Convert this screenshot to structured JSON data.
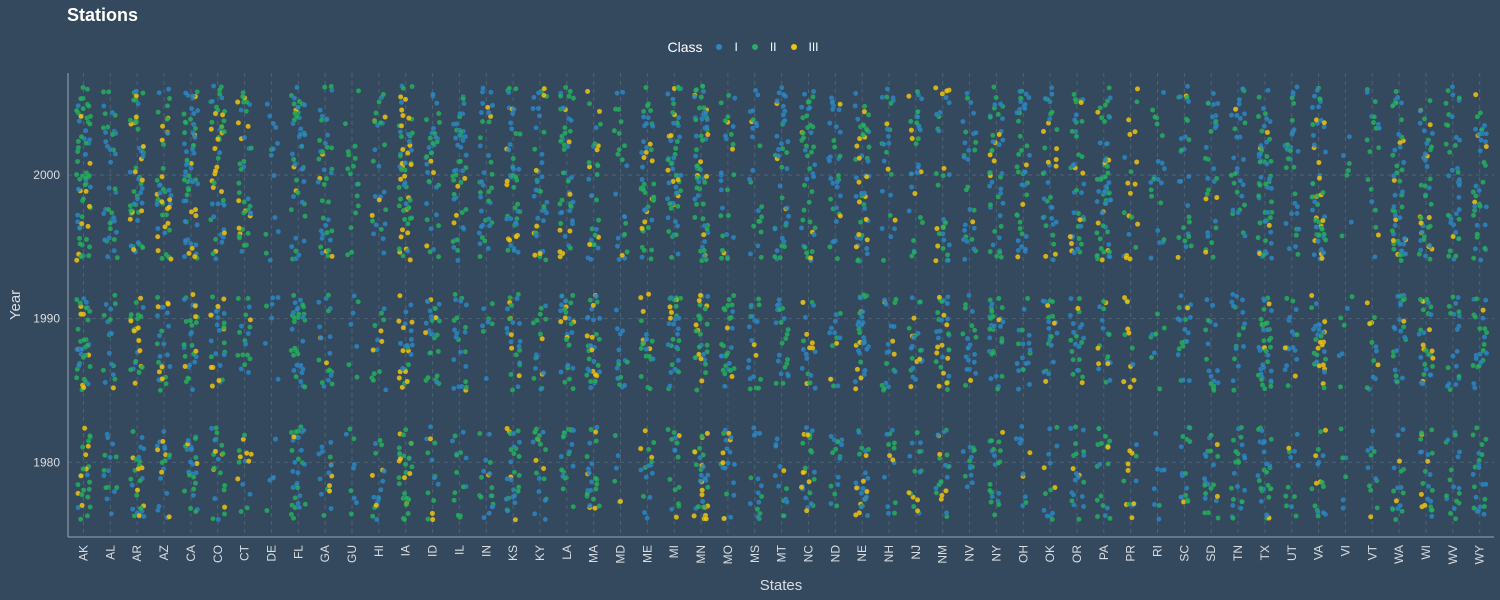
{
  "chart_data": {
    "type": "scatter",
    "title": "Stations",
    "xlabel": "States",
    "ylabel": "Year",
    "legend": {
      "title": "Class",
      "position": "top",
      "entries": [
        {
          "name": "I",
          "color": "#2e86c1"
        },
        {
          "name": "II",
          "color": "#27ae60"
        },
        {
          "name": "III",
          "color": "#f1c40f"
        }
      ]
    },
    "categories": [
      "AK",
      "AL",
      "AR",
      "AZ",
      "CA",
      "CO",
      "CT",
      "DE",
      "FL",
      "GA",
      "GU",
      "HI",
      "IA",
      "ID",
      "IL",
      "IN",
      "KS",
      "KY",
      "LA",
      "MA",
      "MD",
      "ME",
      "MI",
      "MN",
      "MO",
      "MS",
      "MT",
      "NC",
      "ND",
      "NE",
      "NH",
      "NJ",
      "NM",
      "NV",
      "NY",
      "OH",
      "OK",
      "OR",
      "PA",
      "PR",
      "RI",
      "SC",
      "SD",
      "TN",
      "TX",
      "UT",
      "VA",
      "VI",
      "VT",
      "WA",
      "WI",
      "WV",
      "WY"
    ],
    "ylim": [
      1974.8,
      2007.1
    ],
    "yticks": [
      1980,
      1990,
      2000
    ],
    "grid": true,
    "density": [
      1.0,
      0.55,
      0.8,
      0.7,
      0.9,
      0.75,
      0.55,
      0.2,
      0.85,
      0.6,
      0.25,
      0.45,
      0.9,
      0.6,
      0.65,
      0.5,
      0.8,
      0.6,
      0.75,
      0.7,
      0.35,
      0.65,
      0.8,
      0.95,
      0.6,
      0.45,
      0.6,
      0.7,
      0.5,
      0.85,
      0.45,
      0.55,
      0.65,
      0.5,
      0.75,
      0.55,
      0.55,
      0.65,
      0.75,
      0.35,
      0.3,
      0.5,
      0.55,
      0.55,
      0.95,
      0.5,
      0.8,
      0.15,
      0.35,
      0.7,
      0.75,
      0.6,
      0.65
    ],
    "class_mix": [
      [
        0.25,
        0.55,
        0.2
      ],
      [
        0.6,
        0.35,
        0.05
      ],
      [
        0.3,
        0.45,
        0.25
      ],
      [
        0.4,
        0.35,
        0.25
      ],
      [
        0.4,
        0.45,
        0.15
      ],
      [
        0.35,
        0.4,
        0.25
      ],
      [
        0.35,
        0.5,
        0.15
      ],
      [
        0.7,
        0.3,
        0.0
      ],
      [
        0.45,
        0.5,
        0.05
      ],
      [
        0.5,
        0.4,
        0.1
      ],
      [
        0.3,
        0.7,
        0.0
      ],
      [
        0.4,
        0.45,
        0.15
      ],
      [
        0.2,
        0.45,
        0.35
      ],
      [
        0.45,
        0.45,
        0.1
      ],
      [
        0.45,
        0.5,
        0.05
      ],
      [
        0.55,
        0.4,
        0.05
      ],
      [
        0.4,
        0.45,
        0.15
      ],
      [
        0.5,
        0.4,
        0.1
      ],
      [
        0.35,
        0.5,
        0.15
      ],
      [
        0.4,
        0.4,
        0.2
      ],
      [
        0.5,
        0.45,
        0.05
      ],
      [
        0.35,
        0.5,
        0.15
      ],
      [
        0.45,
        0.45,
        0.1
      ],
      [
        0.3,
        0.45,
        0.25
      ],
      [
        0.4,
        0.5,
        0.1
      ],
      [
        0.55,
        0.4,
        0.05
      ],
      [
        0.55,
        0.4,
        0.05
      ],
      [
        0.45,
        0.4,
        0.15
      ],
      [
        0.5,
        0.45,
        0.05
      ],
      [
        0.4,
        0.4,
        0.2
      ],
      [
        0.55,
        0.35,
        0.1
      ],
      [
        0.45,
        0.35,
        0.2
      ],
      [
        0.45,
        0.35,
        0.2
      ],
      [
        0.55,
        0.4,
        0.05
      ],
      [
        0.45,
        0.45,
        0.1
      ],
      [
        0.55,
        0.4,
        0.05
      ],
      [
        0.45,
        0.4,
        0.15
      ],
      [
        0.45,
        0.45,
        0.1
      ],
      [
        0.45,
        0.4,
        0.15
      ],
      [
        0.2,
        0.3,
        0.5
      ],
      [
        0.6,
        0.4,
        0.0
      ],
      [
        0.5,
        0.45,
        0.05
      ],
      [
        0.5,
        0.45,
        0.05
      ],
      [
        0.55,
        0.4,
        0.05
      ],
      [
        0.4,
        0.45,
        0.15
      ],
      [
        0.55,
        0.4,
        0.05
      ],
      [
        0.35,
        0.4,
        0.25
      ],
      [
        0.5,
        0.5,
        0.0
      ],
      [
        0.45,
        0.45,
        0.1
      ],
      [
        0.4,
        0.5,
        0.1
      ],
      [
        0.35,
        0.4,
        0.25
      ],
      [
        0.5,
        0.45,
        0.05
      ],
      [
        0.45,
        0.45,
        0.1
      ]
    ]
  }
}
